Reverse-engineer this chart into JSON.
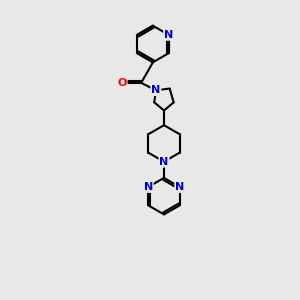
{
  "bg_color": "#e8e8e8",
  "bond_color": "#000000",
  "N_color": "#0000cc",
  "O_color": "#ff0000",
  "line_width": 1.5,
  "figsize": [
    3.0,
    3.0
  ],
  "dpi": 100,
  "xlim": [
    0,
    6
  ],
  "ylim": [
    0,
    10
  ]
}
